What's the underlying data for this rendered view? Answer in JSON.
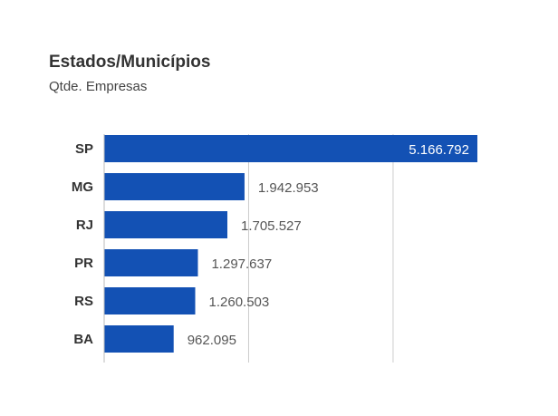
{
  "chart_data": {
    "type": "bar",
    "orientation": "horizontal",
    "title": "Estados/Municípios",
    "subtitle": "Qtde. Empresas",
    "categories": [
      "SP",
      "MG",
      "RJ",
      "PR",
      "RS",
      "BA"
    ],
    "values": [
      5166792,
      1942953,
      1705527,
      1297637,
      1260503,
      962095
    ],
    "value_labels": [
      "5.166.792",
      "1.942.953",
      "1.705.527",
      "1.297.637",
      "1.260.503",
      "962.095"
    ],
    "xlim": [
      0,
      5166792
    ],
    "grid": true,
    "grid_values": [
      2000000,
      4000000
    ],
    "bar_color": "#1351b4",
    "grid_color": "#cccccc",
    "axis_color": "#bbbbbb",
    "legend": "none"
  }
}
